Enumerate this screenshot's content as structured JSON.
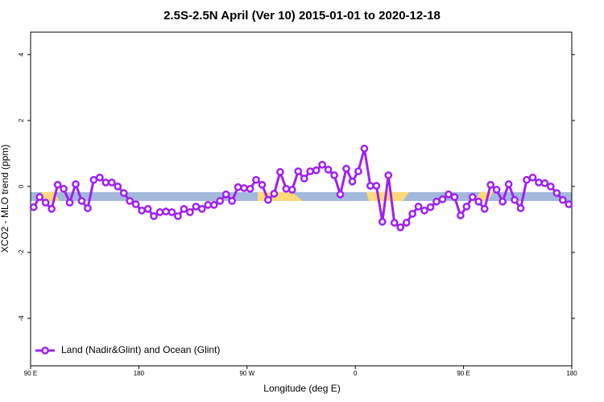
{
  "chart_data": {
    "type": "line",
    "title": "2.5S-2.5N April (Ver 10)   2015-01-01 to 2020-12-18",
    "x_label": "Longitude (deg E)",
    "y_label": "XCO2 - MLO trend (ppm)",
    "xlim": [
      90,
      540
    ],
    "ylim": [
      -5.44,
      4.68
    ],
    "xticks": [
      {
        "value": 90,
        "label": "90 E"
      },
      180,
      {
        "value": 270,
        "label": "90 W"
      },
      {
        "value": 360,
        "label": "0"
      },
      {
        "value": 450,
        "label": "90 E"
      },
      {
        "value": 540,
        "label": "180"
      }
    ],
    "yticks": [
      -4,
      -2,
      0,
      2,
      4
    ],
    "x": [
      92.5,
      97.5,
      102.5,
      107.5,
      112.5,
      117.5,
      122.5,
      127.5,
      132.5,
      137.5,
      142.5,
      147.5,
      152.5,
      157.5,
      162.5,
      167.5,
      172.5,
      177.5,
      182.5,
      187.5,
      192.5,
      197.5,
      202.5,
      207.5,
      212.5,
      217.5,
      222.5,
      227.5,
      232.5,
      237.5,
      242.5,
      247.5,
      252.5,
      257.5,
      262.5,
      267.5,
      272.5,
      277.5,
      282.5,
      287.5,
      292.5,
      297.5,
      302.5,
      307.5,
      312.5,
      317.5,
      322.5,
      327.5,
      332.5,
      337.5,
      342.5,
      347.5,
      352.5,
      357.5,
      362.5,
      367.5,
      372.5,
      377.5,
      382.5,
      387.5,
      392.5,
      397.5,
      402.5,
      407.5,
      412.5,
      417.5,
      422.5,
      427.5,
      432.5,
      437.5,
      442.5,
      447.5,
      452.5,
      457.5,
      462.5,
      467.5,
      472.5,
      477.5,
      482.5,
      487.5,
      492.5,
      497.5,
      502.5,
      507.5,
      512.5,
      517.5,
      522.5,
      527.5,
      532.5,
      537.5
    ],
    "series": [
      {
        "name": "Land (Nadir&Glint) and Ocean (Glint)",
        "color": "#a020f0",
        "values": [
          -0.63,
          -0.32,
          -0.49,
          -0.68,
          0.05,
          -0.07,
          -0.49,
          0.07,
          -0.44,
          -0.66,
          0.2,
          0.27,
          0.12,
          0.12,
          0,
          -0.2,
          -0.44,
          -0.54,
          -0.73,
          -0.68,
          -0.9,
          -0.78,
          -0.76,
          -0.78,
          -0.9,
          -0.68,
          -0.78,
          -0.61,
          -0.68,
          -0.56,
          -0.56,
          -0.44,
          -0.24,
          -0.44,
          -0.02,
          -0.05,
          -0.07,
          0.2,
          0.05,
          -0.41,
          -0.22,
          0.44,
          -0.07,
          -0.1,
          0.46,
          0.24,
          0.46,
          0.49,
          0.66,
          0.51,
          0.34,
          -0.24,
          0.54,
          0.15,
          0.46,
          1.15,
          0.02,
          0.02,
          -1.07,
          0.34,
          -1.1,
          -1.24,
          -1.1,
          -0.83,
          -0.61,
          -0.73,
          -0.63,
          -0.46,
          -0.39,
          -0.24,
          -0.32,
          -0.88,
          -0.61,
          -0.32,
          -0.46,
          -0.68,
          0.05,
          -0.1,
          -0.46,
          0.07,
          -0.41,
          -0.66,
          0.2,
          0.27,
          0.12,
          0.1,
          0,
          -0.2,
          -0.41,
          -0.54
        ]
      }
    ],
    "legend": "bottom-left"
  }
}
